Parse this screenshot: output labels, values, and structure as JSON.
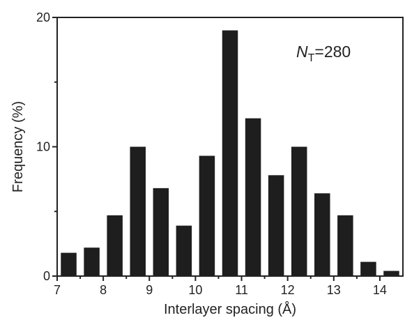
{
  "chart_data": {
    "type": "bar",
    "xlabel": "Interlayer spacing (Å)",
    "ylabel": "Frequency (%)",
    "xlim": [
      7,
      14.5
    ],
    "ylim": [
      0,
      20
    ],
    "x_ticks": [
      7,
      8,
      9,
      10,
      11,
      12,
      13,
      14
    ],
    "y_ticks": [
      0,
      10,
      20
    ],
    "bin_width": 0.5,
    "bar_color": "#1e1e1e",
    "grid": false,
    "bars": [
      {
        "x": 7.25,
        "value": 1.8
      },
      {
        "x": 7.75,
        "value": 2.2
      },
      {
        "x": 8.25,
        "value": 4.7
      },
      {
        "x": 8.75,
        "value": 10.0
      },
      {
        "x": 9.25,
        "value": 6.8
      },
      {
        "x": 9.75,
        "value": 3.9
      },
      {
        "x": 10.25,
        "value": 9.3
      },
      {
        "x": 10.75,
        "value": 19.0
      },
      {
        "x": 11.25,
        "value": 12.2
      },
      {
        "x": 11.75,
        "value": 7.8
      },
      {
        "x": 12.25,
        "value": 10.0
      },
      {
        "x": 12.75,
        "value": 6.4
      },
      {
        "x": 13.25,
        "value": 4.7
      },
      {
        "x": 13.75,
        "value": 1.1
      },
      {
        "x": 14.25,
        "value": 0.4
      }
    ],
    "annotation": {
      "main": "N",
      "sub": "T",
      "rest": "=280"
    }
  }
}
